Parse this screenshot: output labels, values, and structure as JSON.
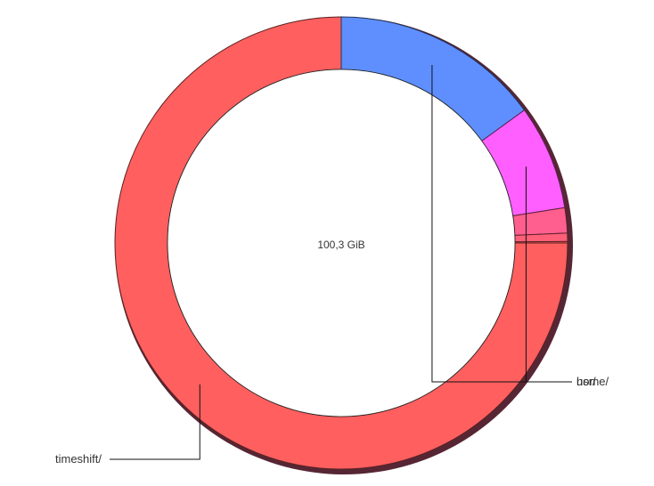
{
  "chart_data": {
    "type": "pie",
    "variant": "donut",
    "center_label": "100,3 GiB",
    "slices": [
      {
        "name": "timeshift/",
        "fraction": 0.75,
        "color": "#ff5f5f",
        "labeled": true
      },
      {
        "name": "home/",
        "fraction": 0.15,
        "color": "#5f8fff",
        "labeled": true
      },
      {
        "name": "usr/",
        "fraction": 0.075,
        "color": "#ff5fff",
        "labeled": true
      },
      {
        "name": "",
        "fraction": 0.018,
        "color": "#ff5f8f",
        "labeled": false
      },
      {
        "name": "",
        "fraction": 0.006,
        "color": "#ff5f78",
        "labeled": false
      },
      {
        "name": "",
        "fraction": 0.001,
        "color": "#ff5f5f",
        "labeled": false
      }
    ],
    "start_angle_deg": 0,
    "direction": "clockwise"
  }
}
